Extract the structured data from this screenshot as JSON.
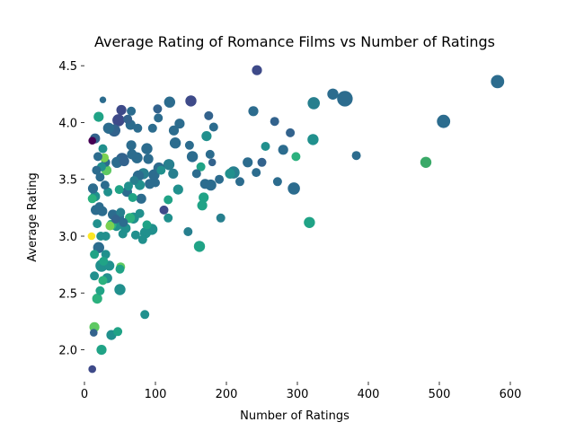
{
  "chart_data": {
    "type": "scatter",
    "title": "Average Rating of Romance Films vs Number of Ratings",
    "xlabel": "Number of Ratings",
    "ylabel": "Average Rating",
    "xlim": [
      0,
      640
    ],
    "ylim": [
      1.72,
      4.62
    ],
    "xticks": [
      0,
      100,
      200,
      300,
      400,
      500,
      600
    ],
    "yticks": [
      2.0,
      2.5,
      3.0,
      3.5,
      4.0,
      4.5
    ],
    "ytick_labels": [
      "2.0",
      "2.5",
      "3.0",
      "3.5",
      "4.0",
      "4.5"
    ],
    "grid": false,
    "colormap": "viridis",
    "points": [
      {
        "x": 582,
        "y": 4.36,
        "size": 12,
        "color": "#2c6c8e"
      },
      {
        "x": 506,
        "y": 4.01,
        "size": 12,
        "color": "#2c6c8e"
      },
      {
        "x": 481,
        "y": 3.65,
        "size": 10,
        "color": "#3aa968"
      },
      {
        "x": 383,
        "y": 3.71,
        "size": 8,
        "color": "#2c6c8e"
      },
      {
        "x": 367,
        "y": 4.21,
        "size": 14,
        "color": "#2c6c8e"
      },
      {
        "x": 350,
        "y": 4.25,
        "size": 10,
        "color": "#2c6c8e"
      },
      {
        "x": 323,
        "y": 4.17,
        "size": 11,
        "color": "#277f8e"
      },
      {
        "x": 322,
        "y": 3.85,
        "size": 10,
        "color": "#21908d"
      },
      {
        "x": 317,
        "y": 3.12,
        "size": 10,
        "color": "#20a386"
      },
      {
        "x": 298,
        "y": 3.7,
        "size": 8,
        "color": "#2cb17e"
      },
      {
        "x": 295,
        "y": 3.42,
        "size": 11,
        "color": "#2c6c8e"
      },
      {
        "x": 290,
        "y": 3.91,
        "size": 8,
        "color": "#33638d"
      },
      {
        "x": 280,
        "y": 3.76,
        "size": 9,
        "color": "#2c6c8e"
      },
      {
        "x": 272,
        "y": 3.48,
        "size": 8,
        "color": "#2c6c8e"
      },
      {
        "x": 268,
        "y": 4.01,
        "size": 8,
        "color": "#33638d"
      },
      {
        "x": 255,
        "y": 3.79,
        "size": 8,
        "color": "#21908d"
      },
      {
        "x": 250,
        "y": 3.65,
        "size": 8,
        "color": "#33638d"
      },
      {
        "x": 243,
        "y": 4.46,
        "size": 9,
        "color": "#3e4a89"
      },
      {
        "x": 242,
        "y": 3.56,
        "size": 8,
        "color": "#2c6c8e"
      },
      {
        "x": 238,
        "y": 4.1,
        "size": 9,
        "color": "#2c6c8e"
      },
      {
        "x": 230,
        "y": 3.65,
        "size": 9,
        "color": "#2c6c8e"
      },
      {
        "x": 219,
        "y": 3.48,
        "size": 8,
        "color": "#2c6c8e"
      },
      {
        "x": 210,
        "y": 3.56,
        "size": 11,
        "color": "#277f8e"
      },
      {
        "x": 205,
        "y": 3.55,
        "size": 9,
        "color": "#21908d"
      },
      {
        "x": 192,
        "y": 3.16,
        "size": 8,
        "color": "#277f8e"
      },
      {
        "x": 190,
        "y": 3.5,
        "size": 8,
        "color": "#2c6c8e"
      },
      {
        "x": 182,
        "y": 3.96,
        "size": 8,
        "color": "#2c6c8e"
      },
      {
        "x": 180,
        "y": 3.65,
        "size": 7,
        "color": "#33638d"
      },
      {
        "x": 178,
        "y": 3.45,
        "size": 10,
        "color": "#2c6c8e"
      },
      {
        "x": 177,
        "y": 3.72,
        "size": 8,
        "color": "#2c6c8e"
      },
      {
        "x": 175,
        "y": 4.06,
        "size": 8,
        "color": "#33638d"
      },
      {
        "x": 172,
        "y": 3.88,
        "size": 9,
        "color": "#21908d"
      },
      {
        "x": 170,
        "y": 3.46,
        "size": 9,
        "color": "#2c6c8e"
      },
      {
        "x": 168,
        "y": 3.34,
        "size": 9,
        "color": "#20a386"
      },
      {
        "x": 166,
        "y": 3.27,
        "size": 9,
        "color": "#20a386"
      },
      {
        "x": 164,
        "y": 3.61,
        "size": 8,
        "color": "#20a386"
      },
      {
        "x": 162,
        "y": 2.91,
        "size": 10,
        "color": "#20a386"
      },
      {
        "x": 158,
        "y": 3.55,
        "size": 8,
        "color": "#2c6c8e"
      },
      {
        "x": 152,
        "y": 3.7,
        "size": 10,
        "color": "#2c6c8e"
      },
      {
        "x": 150,
        "y": 4.19,
        "size": 10,
        "color": "#3e4a89"
      },
      {
        "x": 148,
        "y": 3.8,
        "size": 8,
        "color": "#2c6c8e"
      },
      {
        "x": 146,
        "y": 3.04,
        "size": 8,
        "color": "#277f8e"
      },
      {
        "x": 134,
        "y": 3.99,
        "size": 9,
        "color": "#2c6c8e"
      },
      {
        "x": 132,
        "y": 3.41,
        "size": 9,
        "color": "#21908d"
      },
      {
        "x": 128,
        "y": 3.82,
        "size": 10,
        "color": "#2c6c8e"
      },
      {
        "x": 126,
        "y": 3.93,
        "size": 9,
        "color": "#2c6c8e"
      },
      {
        "x": 125,
        "y": 3.55,
        "size": 9,
        "color": "#277f8e"
      },
      {
        "x": 120,
        "y": 4.18,
        "size": 10,
        "color": "#2c6c8e"
      },
      {
        "x": 119,
        "y": 3.63,
        "size": 10,
        "color": "#277f8e"
      },
      {
        "x": 118,
        "y": 3.32,
        "size": 8,
        "color": "#20a386"
      },
      {
        "x": 118,
        "y": 3.16,
        "size": 8,
        "color": "#21908d"
      },
      {
        "x": 112,
        "y": 3.23,
        "size": 8,
        "color": "#3e4a89"
      },
      {
        "x": 108,
        "y": 3.58,
        "size": 8,
        "color": "#21908d"
      },
      {
        "x": 105,
        "y": 3.6,
        "size": 10,
        "color": "#2c6c8e"
      },
      {
        "x": 104,
        "y": 4.04,
        "size": 8,
        "color": "#2c6c8e"
      },
      {
        "x": 103,
        "y": 4.12,
        "size": 8,
        "color": "#33638d"
      },
      {
        "x": 100,
        "y": 3.47,
        "size": 8,
        "color": "#2c6c8e"
      },
      {
        "x": 98,
        "y": 3.54,
        "size": 10,
        "color": "#2c6c8e"
      },
      {
        "x": 96,
        "y": 3.95,
        "size": 8,
        "color": "#2c6c8e"
      },
      {
        "x": 95,
        "y": 3.06,
        "size": 10,
        "color": "#21908d"
      },
      {
        "x": 92,
        "y": 3.46,
        "size": 9,
        "color": "#2c6c8e"
      },
      {
        "x": 90,
        "y": 3.68,
        "size": 9,
        "color": "#2c6c8e"
      },
      {
        "x": 88,
        "y": 3.77,
        "size": 10,
        "color": "#2c6c8e"
      },
      {
        "x": 88,
        "y": 3.1,
        "size": 8,
        "color": "#20a386"
      },
      {
        "x": 86,
        "y": 3.03,
        "size": 10,
        "color": "#21908d"
      },
      {
        "x": 85,
        "y": 2.31,
        "size": 8,
        "color": "#21908d"
      },
      {
        "x": 83,
        "y": 3.55,
        "size": 10,
        "color": "#277f8e"
      },
      {
        "x": 82,
        "y": 2.97,
        "size": 8,
        "color": "#21908d"
      },
      {
        "x": 80,
        "y": 3.33,
        "size": 9,
        "color": "#2c6c8e"
      },
      {
        "x": 78,
        "y": 3.45,
        "size": 9,
        "color": "#21908d"
      },
      {
        "x": 78,
        "y": 3.2,
        "size": 8,
        "color": "#21908d"
      },
      {
        "x": 76,
        "y": 3.53,
        "size": 10,
        "color": "#2c6c8e"
      },
      {
        "x": 75,
        "y": 3.95,
        "size": 8,
        "color": "#2c6c8e"
      },
      {
        "x": 74,
        "y": 3.69,
        "size": 10,
        "color": "#2c6c8e"
      },
      {
        "x": 72,
        "y": 3.01,
        "size": 8,
        "color": "#21908d"
      },
      {
        "x": 70,
        "y": 3.49,
        "size": 8,
        "color": "#277f8e"
      },
      {
        "x": 69,
        "y": 3.16,
        "size": 10,
        "color": "#21908d"
      },
      {
        "x": 68,
        "y": 3.34,
        "size": 8,
        "color": "#20a386"
      },
      {
        "x": 67,
        "y": 3.72,
        "size": 9,
        "color": "#2c6c8e"
      },
      {
        "x": 66,
        "y": 3.8,
        "size": 9,
        "color": "#2c6c8e"
      },
      {
        "x": 66,
        "y": 4.1,
        "size": 8,
        "color": "#2c6c8e"
      },
      {
        "x": 65,
        "y": 3.98,
        "size": 9,
        "color": "#2c6c8e"
      },
      {
        "x": 64,
        "y": 3.16,
        "size": 9,
        "color": "#2cb17e"
      },
      {
        "x": 62,
        "y": 3.44,
        "size": 8,
        "color": "#21908d"
      },
      {
        "x": 61,
        "y": 4.03,
        "size": 8,
        "color": "#33638d"
      },
      {
        "x": 60,
        "y": 3.39,
        "size": 9,
        "color": "#2c6c8e"
      },
      {
        "x": 58,
        "y": 3.07,
        "size": 9,
        "color": "#21908d"
      },
      {
        "x": 56,
        "y": 3.66,
        "size": 9,
        "color": "#33638d"
      },
      {
        "x": 55,
        "y": 3.12,
        "size": 8,
        "color": "#2c6c8e"
      },
      {
        "x": 54,
        "y": 3.02,
        "size": 8,
        "color": "#21908d"
      },
      {
        "x": 53,
        "y": 3.68,
        "size": 11,
        "color": "#33638d"
      },
      {
        "x": 52,
        "y": 4.11,
        "size": 9,
        "color": "#3e4a89"
      },
      {
        "x": 51,
        "y": 3.21,
        "size": 8,
        "color": "#277f8e"
      },
      {
        "x": 51,
        "y": 2.73,
        "size": 8,
        "color": "#5ec962"
      },
      {
        "x": 50,
        "y": 2.53,
        "size": 10,
        "color": "#21908d"
      },
      {
        "x": 50,
        "y": 2.71,
        "size": 8,
        "color": "#20a386"
      },
      {
        "x": 49,
        "y": 3.41,
        "size": 8,
        "color": "#20a386"
      },
      {
        "x": 48,
        "y": 3.17,
        "size": 10,
        "color": "#2c6c8e"
      },
      {
        "x": 48,
        "y": 4.02,
        "size": 11,
        "color": "#3e4a89"
      },
      {
        "x": 47,
        "y": 2.16,
        "size": 8,
        "color": "#20a386"
      },
      {
        "x": 46,
        "y": 3.65,
        "size": 10,
        "color": "#2c6c8e"
      },
      {
        "x": 45,
        "y": 3.09,
        "size": 9,
        "color": "#21908d"
      },
      {
        "x": 44,
        "y": 3.15,
        "size": 8,
        "color": "#33638d"
      },
      {
        "x": 42,
        "y": 3.93,
        "size": 11,
        "color": "#33638d"
      },
      {
        "x": 40,
        "y": 3.19,
        "size": 9,
        "color": "#2c6c8e"
      },
      {
        "x": 38,
        "y": 3.1,
        "size": 9,
        "color": "#2cb17e"
      },
      {
        "x": 38,
        "y": 2.13,
        "size": 9,
        "color": "#21908d"
      },
      {
        "x": 36,
        "y": 3.09,
        "size": 8,
        "color": "#7ad151"
      },
      {
        "x": 35,
        "y": 2.74,
        "size": 9,
        "color": "#21908d"
      },
      {
        "x": 34,
        "y": 3.95,
        "size": 10,
        "color": "#2c6c8e"
      },
      {
        "x": 33,
        "y": 3.39,
        "size": 8,
        "color": "#21908d"
      },
      {
        "x": 32,
        "y": 2.63,
        "size": 9,
        "color": "#21908d"
      },
      {
        "x": 31,
        "y": 3.58,
        "size": 9,
        "color": "#5ec962"
      },
      {
        "x": 30,
        "y": 3.65,
        "size": 8,
        "color": "#2c6c8e"
      },
      {
        "x": 30,
        "y": 3.0,
        "size": 8,
        "color": "#21908d"
      },
      {
        "x": 30,
        "y": 2.84,
        "size": 8,
        "color": "#21908d"
      },
      {
        "x": 29,
        "y": 3.45,
        "size": 8,
        "color": "#2c6c8e"
      },
      {
        "x": 28,
        "y": 3.69,
        "size": 8,
        "color": "#7ad151"
      },
      {
        "x": 27,
        "y": 2.78,
        "size": 8,
        "color": "#20a386"
      },
      {
        "x": 26,
        "y": 3.77,
        "size": 8,
        "color": "#21908d"
      },
      {
        "x": 26,
        "y": 2.61,
        "size": 8,
        "color": "#2cb17e"
      },
      {
        "x": 26,
        "y": 4.2,
        "size": 6,
        "color": "#2c6c8e"
      },
      {
        "x": 25,
        "y": 3.22,
        "size": 9,
        "color": "#2c6c8e"
      },
      {
        "x": 24,
        "y": 3.61,
        "size": 8,
        "color": "#21908d"
      },
      {
        "x": 24,
        "y": 2.74,
        "size": 11,
        "color": "#21908d"
      },
      {
        "x": 24,
        "y": 2.0,
        "size": 9,
        "color": "#20a386"
      },
      {
        "x": 23,
        "y": 3.0,
        "size": 8,
        "color": "#21908d"
      },
      {
        "x": 22,
        "y": 2.52,
        "size": 8,
        "color": "#20a386"
      },
      {
        "x": 22,
        "y": 3.52,
        "size": 8,
        "color": "#2c6c8e"
      },
      {
        "x": 21,
        "y": 3.26,
        "size": 8,
        "color": "#2c6c8e"
      },
      {
        "x": 20,
        "y": 4.05,
        "size": 9,
        "color": "#20a386"
      },
      {
        "x": 20,
        "y": 2.9,
        "size": 10,
        "color": "#2c6c8e"
      },
      {
        "x": 19,
        "y": 3.7,
        "size": 8,
        "color": "#2c6c8e"
      },
      {
        "x": 18,
        "y": 2.45,
        "size": 9,
        "color": "#2cb17e"
      },
      {
        "x": 18,
        "y": 3.11,
        "size": 8,
        "color": "#21908d"
      },
      {
        "x": 17,
        "y": 3.58,
        "size": 8,
        "color": "#2c6c8e"
      },
      {
        "x": 16,
        "y": 3.23,
        "size": 9,
        "color": "#2c6c8e"
      },
      {
        "x": 15,
        "y": 3.86,
        "size": 9,
        "color": "#33638d"
      },
      {
        "x": 15,
        "y": 3.35,
        "size": 9,
        "color": "#21908d"
      },
      {
        "x": 14,
        "y": 2.84,
        "size": 8,
        "color": "#20a386"
      },
      {
        "x": 14,
        "y": 2.65,
        "size": 8,
        "color": "#21908d"
      },
      {
        "x": 14,
        "y": 2.2,
        "size": 9,
        "color": "#5ec962"
      },
      {
        "x": 13,
        "y": 2.15,
        "size": 7,
        "color": "#33638d"
      },
      {
        "x": 12,
        "y": 3.42,
        "size": 9,
        "color": "#2c6c8e"
      },
      {
        "x": 11,
        "y": 3.84,
        "size": 7,
        "color": "#440154"
      },
      {
        "x": 11,
        "y": 3.33,
        "size": 8,
        "color": "#2cb17e"
      },
      {
        "x": 10,
        "y": 3.0,
        "size": 7,
        "color": "#fde725"
      },
      {
        "x": 11,
        "y": 1.83,
        "size": 7,
        "color": "#3e4a89"
      }
    ]
  }
}
